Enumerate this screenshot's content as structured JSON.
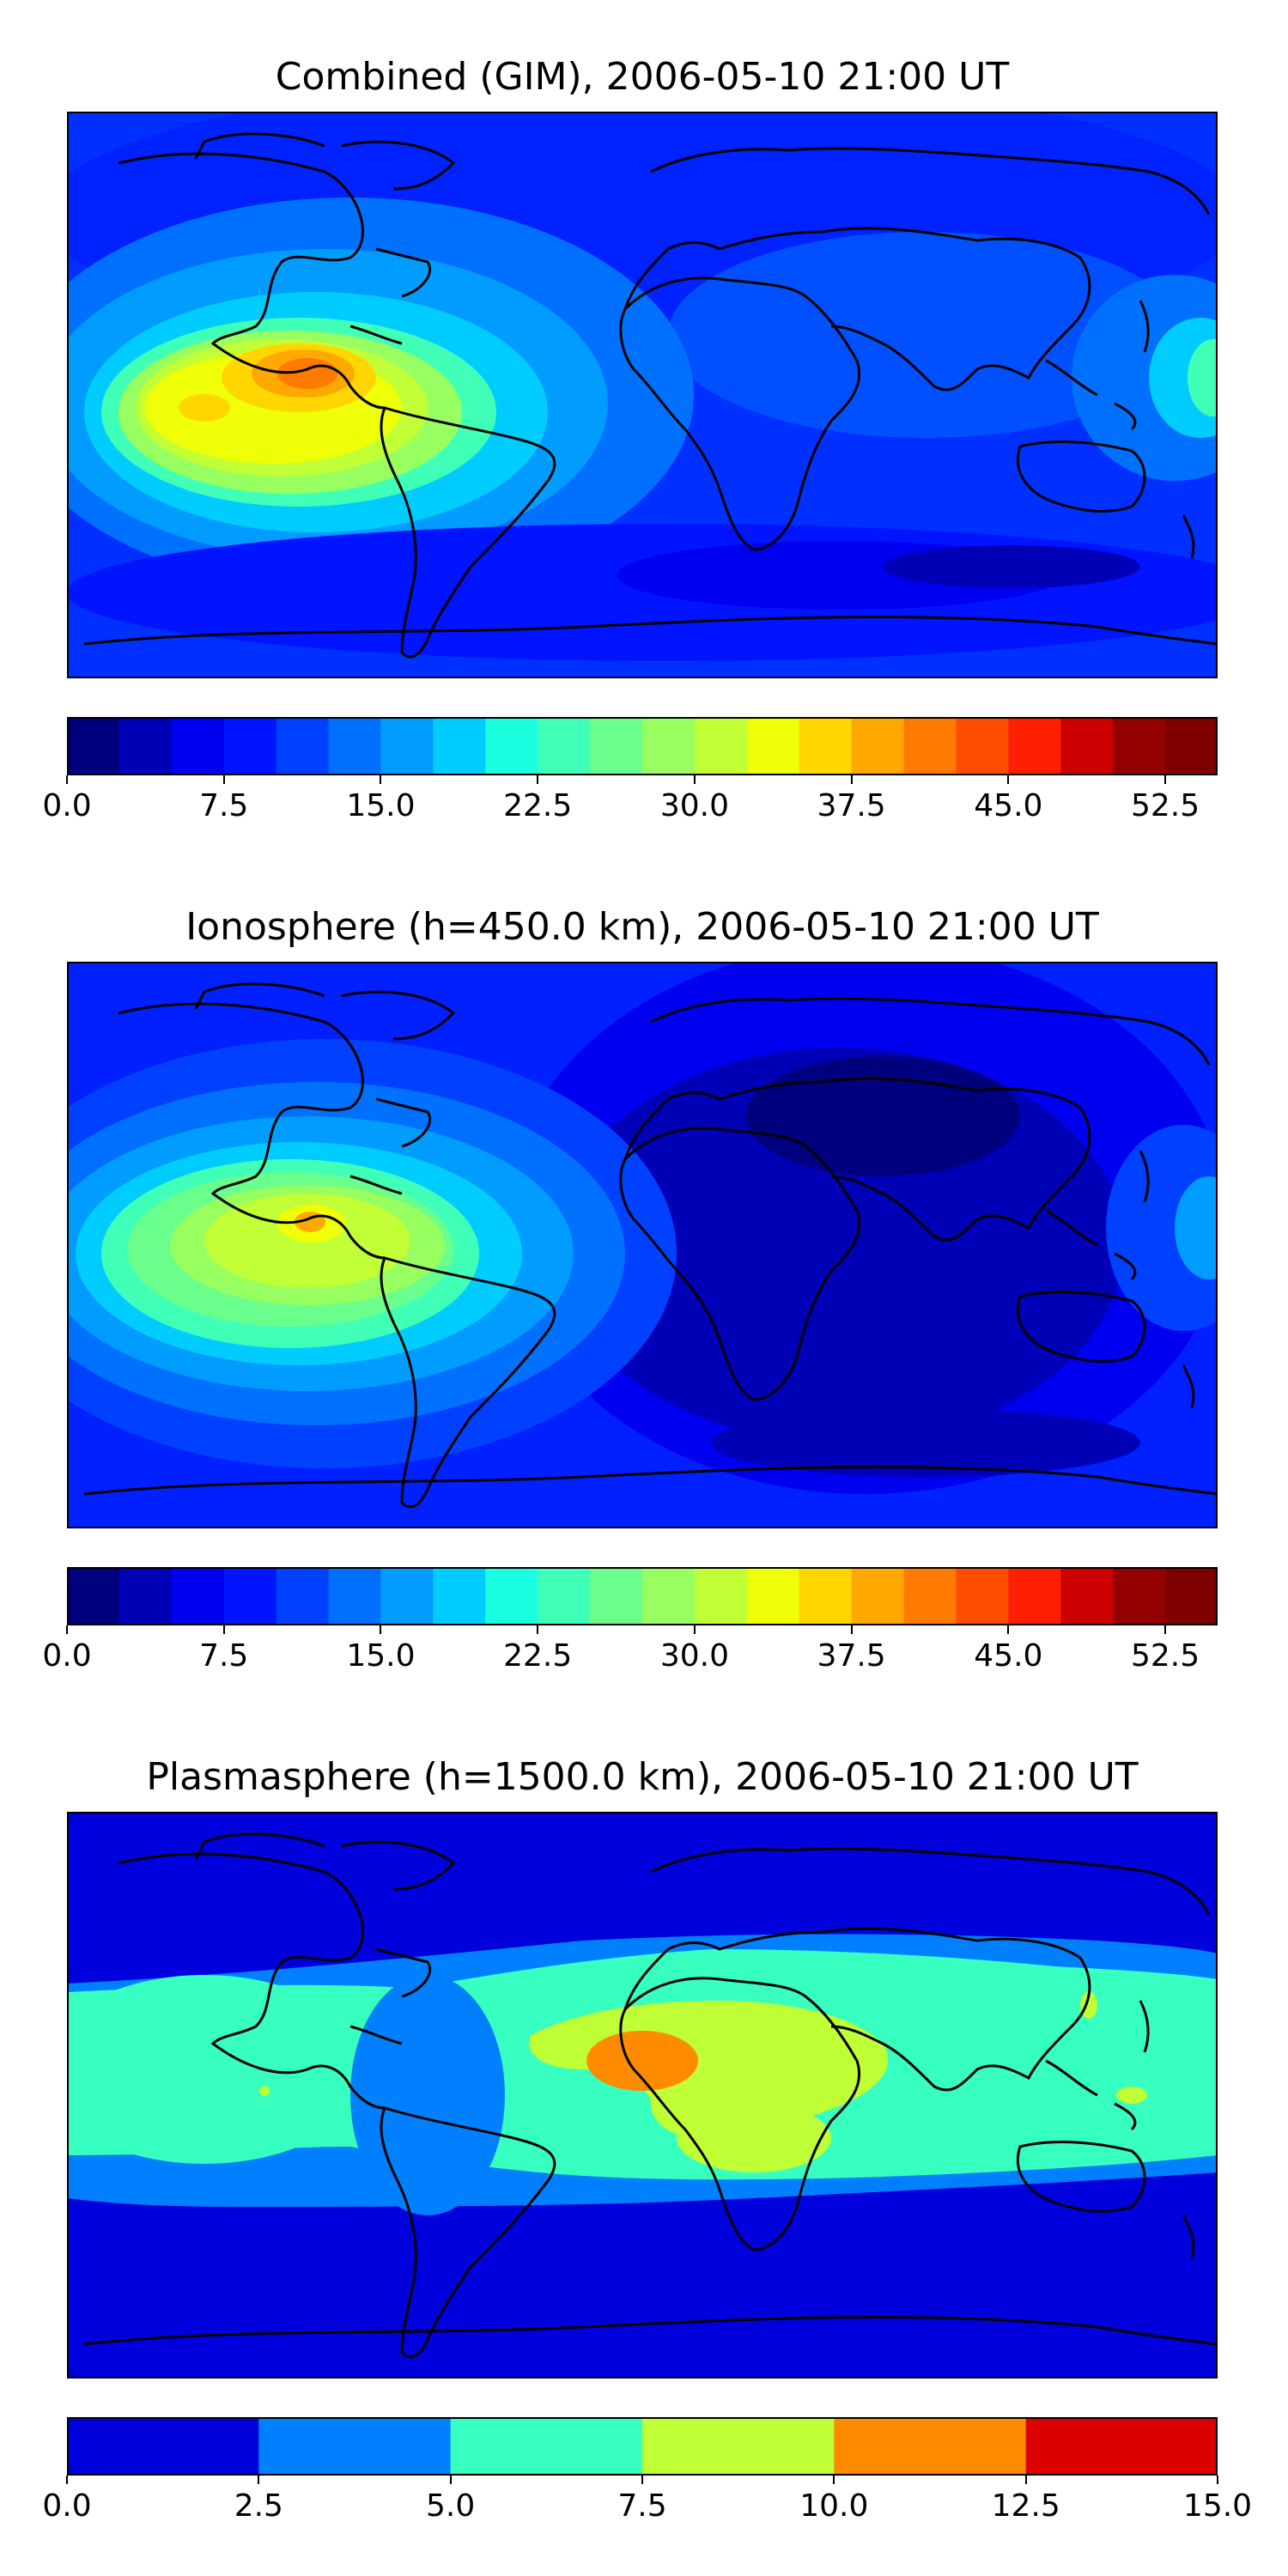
{
  "panels": [
    {
      "title": "Combined (GIM), 2006-05-10 21:00 UT",
      "colorbar": {
        "min": 0.0,
        "max": 55.0,
        "step": 2.5,
        "ticks": [
          "0.0",
          "7.5",
          "15.0",
          "22.5",
          "30.0",
          "37.5",
          "45.0",
          "52.5"
        ],
        "colors": [
          "#00007f",
          "#0000b6",
          "#0000f1",
          "#0014ff",
          "#0040ff",
          "#0070ff",
          "#009cff",
          "#00ccff",
          "#1affe0",
          "#40ffb7",
          "#6aff8d",
          "#97ff60",
          "#c1ff36",
          "#eeff08",
          "#ffd600",
          "#ffa900",
          "#ff7a00",
          "#ff4d00",
          "#fe1f00",
          "#cd0000",
          "#930000",
          "#7f0000"
        ]
      }
    },
    {
      "title": "Ionosphere  (h=450.0 km), 2006-05-10 21:00 UT",
      "colorbar": {
        "min": 0.0,
        "max": 55.0,
        "step": 2.5,
        "ticks": [
          "0.0",
          "7.5",
          "15.0",
          "22.5",
          "30.0",
          "37.5",
          "45.0",
          "52.5"
        ],
        "colors": [
          "#00007f",
          "#0000b6",
          "#0000f1",
          "#0014ff",
          "#0040ff",
          "#0070ff",
          "#009cff",
          "#00ccff",
          "#1affe0",
          "#40ffb7",
          "#6aff8d",
          "#97ff60",
          "#c1ff36",
          "#eeff08",
          "#ffd600",
          "#ffa900",
          "#ff7a00",
          "#ff4d00",
          "#fe1f00",
          "#cd0000",
          "#930000",
          "#7f0000"
        ]
      }
    },
    {
      "title": "Plasmasphere (h=1500.0 km), 2006-05-10 21:00 UT",
      "colorbar": {
        "min": 0.0,
        "max": 15.0,
        "step": 2.5,
        "ticks": [
          "0.0",
          "2.5",
          "5.0",
          "7.5",
          "10.0",
          "12.5",
          "15.0"
        ],
        "colors": [
          "#0000dd",
          "#0080ff",
          "#36ffbf",
          "#bfff36",
          "#ff8c00",
          "#dd0000"
        ]
      }
    }
  ]
}
